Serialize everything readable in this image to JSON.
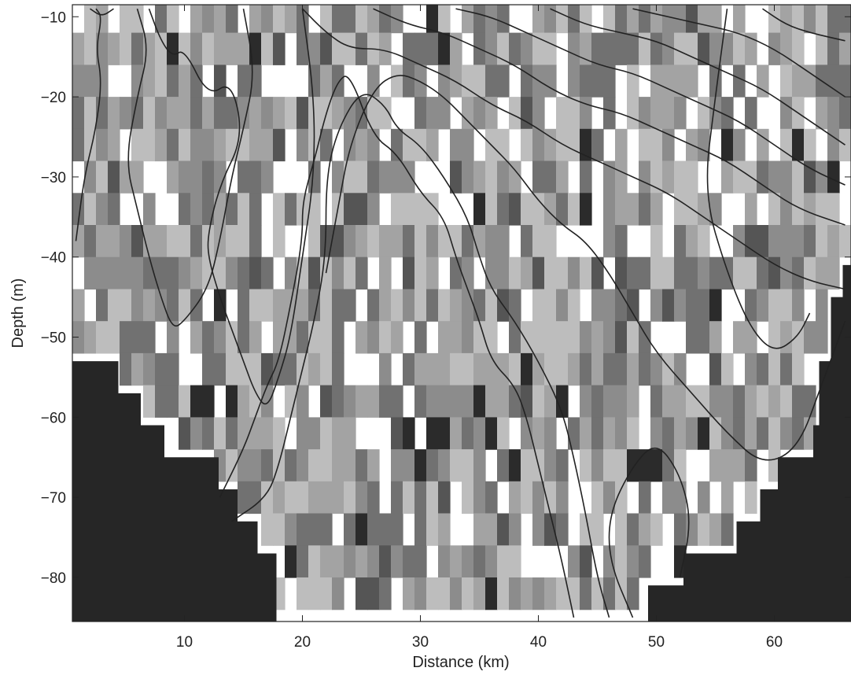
{
  "chart_data": {
    "type": "heatmap",
    "title": "",
    "xlabel": "Distance (km)",
    "ylabel": "Depth (m)",
    "xlim": [
      0.5,
      66.5
    ],
    "ylim": [
      -85.5,
      -8.5
    ],
    "x_ticks": [
      10,
      20,
      30,
      40,
      50,
      60
    ],
    "y_ticks": [
      -10,
      -20,
      -30,
      -40,
      -50,
      -60,
      -70,
      -80
    ],
    "colormap": [
      "#ffffff",
      "#bdbdbd",
      "#a3a3a3",
      "#8c8c8c",
      "#717171",
      "#555555",
      "#2b2b2b"
    ],
    "seabed_color": "#262626",
    "contour_color": "#222222",
    "grid": false,
    "seabed_depth_left": [
      {
        "x": 0.5,
        "depth": -53
      },
      {
        "x": 4.4,
        "depth": -57
      },
      {
        "x": 6.3,
        "depth": -61
      },
      {
        "x": 8.3,
        "depth": -65
      },
      {
        "x": 12.9,
        "depth": -69
      },
      {
        "x": 14.5,
        "depth": -73
      },
      {
        "x": 16.2,
        "depth": -77
      },
      {
        "x": 17.8,
        "depth": -85.5
      }
    ],
    "seabed_depth_right": [
      {
        "x": 49.3,
        "depth": -81
      },
      {
        "x": 52.3,
        "depth": -77
      },
      {
        "x": 56.8,
        "depth": -73
      },
      {
        "x": 58.8,
        "depth": -69
      },
      {
        "x": 60.3,
        "depth": -65
      },
      {
        "x": 63.3,
        "depth": -61
      },
      {
        "x": 63.8,
        "depth": -53
      },
      {
        "x": 64.8,
        "depth": -45
      },
      {
        "x": 65.8,
        "depth": -41
      },
      {
        "x": 66.5,
        "depth": -41
      }
    ],
    "contour_lines": [
      [
        [
          2,
          -9
        ],
        [
          3,
          -10
        ],
        [
          4,
          -9
        ]
      ],
      [
        [
          7,
          -9
        ],
        [
          8,
          -13
        ],
        [
          9,
          -15
        ],
        [
          10,
          -14
        ],
        [
          12,
          -20
        ],
        [
          14,
          -18
        ],
        [
          15,
          -25
        ],
        [
          13,
          -31
        ],
        [
          12,
          -37
        ],
        [
          12,
          -40
        ],
        [
          13,
          -45
        ],
        [
          14,
          -49
        ],
        [
          15,
          -53
        ],
        [
          16,
          -57
        ],
        [
          17,
          -59
        ],
        [
          18,
          -55
        ],
        [
          19,
          -50
        ],
        [
          20,
          -40
        ],
        [
          21,
          -30
        ],
        [
          21,
          -20
        ],
        [
          20,
          -9
        ]
      ],
      [
        [
          0.8,
          -38
        ],
        [
          1.5,
          -30
        ],
        [
          2.5,
          -24
        ],
        [
          3,
          -18
        ],
        [
          2.5,
          -14
        ],
        [
          3,
          -10
        ],
        [
          2.5,
          -9
        ]
      ],
      [
        [
          6,
          -9
        ],
        [
          7,
          -14
        ],
        [
          6,
          -20
        ],
        [
          5,
          -28
        ],
        [
          6,
          -34
        ],
        [
          7,
          -40
        ],
        [
          8,
          -45
        ],
        [
          9,
          -49
        ],
        [
          10,
          -48
        ],
        [
          12,
          -44
        ],
        [
          13,
          -38
        ],
        [
          14,
          -30
        ],
        [
          15,
          -24
        ],
        [
          16,
          -17
        ],
        [
          15,
          -9
        ]
      ],
      [
        [
          13,
          -70
        ],
        [
          15,
          -64
        ],
        [
          16,
          -60
        ],
        [
          17,
          -56
        ],
        [
          18,
          -53
        ],
        [
          19,
          -46
        ],
        [
          20,
          -38
        ],
        [
          20,
          -33
        ],
        [
          21,
          -28
        ],
        [
          22,
          -22
        ],
        [
          23,
          -18
        ],
        [
          24,
          -17
        ],
        [
          26,
          -25
        ],
        [
          28,
          -27
        ],
        [
          30,
          -32
        ],
        [
          32,
          -35
        ],
        [
          33,
          -40
        ],
        [
          34,
          -44
        ],
        [
          35,
          -48
        ],
        [
          36,
          -53
        ],
        [
          38,
          -56
        ],
        [
          39,
          -60
        ],
        [
          40,
          -66
        ],
        [
          41,
          -72
        ],
        [
          42,
          -78
        ],
        [
          43,
          -85
        ]
      ],
      [
        [
          14,
          -73
        ],
        [
          17,
          -70
        ],
        [
          18,
          -66
        ],
        [
          19,
          -60
        ],
        [
          20,
          -54
        ],
        [
          21,
          -48
        ],
        [
          22,
          -40
        ],
        [
          22,
          -30
        ],
        [
          23,
          -24
        ],
        [
          25,
          -19
        ],
        [
          27,
          -21
        ],
        [
          28,
          -24
        ],
        [
          30,
          -26
        ],
        [
          32,
          -30
        ],
        [
          34,
          -35
        ],
        [
          35,
          -40
        ],
        [
          36,
          -44
        ],
        [
          38,
          -48
        ],
        [
          40,
          -53
        ],
        [
          42,
          -59
        ],
        [
          43,
          -65
        ],
        [
          44,
          -72
        ],
        [
          45,
          -80
        ],
        [
          46,
          -85
        ]
      ],
      [
        [
          22,
          -42
        ],
        [
          23,
          -34
        ],
        [
          24,
          -26
        ],
        [
          26,
          -19
        ],
        [
          28,
          -17
        ],
        [
          30,
          -18
        ],
        [
          32,
          -20
        ],
        [
          34,
          -23
        ],
        [
          36,
          -26
        ],
        [
          38,
          -29
        ],
        [
          40,
          -33
        ],
        [
          42,
          -36
        ],
        [
          44,
          -38
        ],
        [
          46,
          -42
        ],
        [
          48,
          -47
        ],
        [
          50,
          -52
        ],
        [
          53,
          -57
        ],
        [
          56,
          -62
        ],
        [
          59,
          -66
        ],
        [
          62,
          -64
        ],
        [
          64,
          -56
        ],
        [
          66,
          -48
        ]
      ],
      [
        [
          20,
          -9
        ],
        [
          22,
          -12
        ],
        [
          24,
          -14
        ],
        [
          27,
          -14
        ],
        [
          30,
          -16
        ],
        [
          33,
          -18
        ],
        [
          36,
          -21
        ],
        [
          39,
          -23
        ],
        [
          42,
          -26
        ],
        [
          45,
          -28
        ],
        [
          48,
          -30
        ],
        [
          51,
          -32
        ],
        [
          54,
          -35
        ],
        [
          57,
          -38
        ],
        [
          60,
          -41
        ],
        [
          63,
          -43
        ],
        [
          66,
          -44
        ]
      ],
      [
        [
          26,
          -9
        ],
        [
          29,
          -11
        ],
        [
          32,
          -12
        ],
        [
          35,
          -14
        ],
        [
          38,
          -16
        ],
        [
          41,
          -19
        ],
        [
          44,
          -21
        ],
        [
          47,
          -22
        ],
        [
          50,
          -24
        ],
        [
          53,
          -26
        ],
        [
          56,
          -28
        ],
        [
          59,
          -31
        ],
        [
          62,
          -34
        ],
        [
          66,
          -36
        ]
      ],
      [
        [
          33,
          -9
        ],
        [
          36,
          -10
        ],
        [
          39,
          -12
        ],
        [
          42,
          -14
        ],
        [
          45,
          -16
        ],
        [
          48,
          -17
        ],
        [
          51,
          -19
        ],
        [
          54,
          -21
        ],
        [
          57,
          -23
        ],
        [
          60,
          -26
        ],
        [
          63,
          -29
        ],
        [
          66,
          -31
        ]
      ],
      [
        [
          41,
          -9
        ],
        [
          44,
          -11
        ],
        [
          47,
          -12
        ],
        [
          50,
          -13
        ],
        [
          53,
          -15
        ],
        [
          56,
          -17
        ],
        [
          59,
          -19
        ],
        [
          62,
          -22
        ],
        [
          66,
          -26
        ]
      ],
      [
        [
          48,
          -9
        ],
        [
          51,
          -10
        ],
        [
          54,
          -11
        ],
        [
          57,
          -12
        ],
        [
          60,
          -14
        ],
        [
          63,
          -17
        ],
        [
          66,
          -20
        ]
      ],
      [
        [
          59,
          -9
        ],
        [
          61,
          -11
        ],
        [
          63,
          -12
        ],
        [
          66,
          -13
        ]
      ],
      [
        [
          56,
          -9
        ],
        [
          55,
          -20
        ],
        [
          54,
          -32
        ],
        [
          56,
          -42
        ],
        [
          58,
          -49
        ],
        [
          60,
          -52
        ],
        [
          62,
          -50
        ],
        [
          63,
          -47
        ]
      ],
      [
        [
          48,
          -85
        ],
        [
          46,
          -78
        ],
        [
          46,
          -72
        ],
        [
          48,
          -66
        ],
        [
          50,
          -63
        ],
        [
          52,
          -67
        ],
        [
          53,
          -73
        ],
        [
          52,
          -80
        ]
      ]
    ]
  }
}
